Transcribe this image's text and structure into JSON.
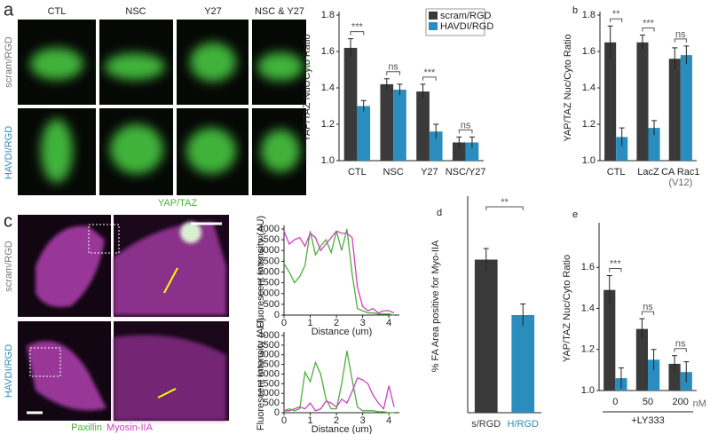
{
  "images": {
    "a": {
      "panel": "a",
      "columns": [
        "CTL",
        "NSC",
        "Y27",
        "NSC & Y27"
      ],
      "rows": [
        "scram/RGD",
        "HAVDI/RGD"
      ],
      "caption": "YAP/TAZ"
    },
    "c": {
      "panel": "c",
      "rows": [
        "scram/RGD",
        "HAVDI/RGD"
      ],
      "captions": [
        "Paxillin",
        "Myosin-IIA"
      ]
    }
  },
  "chart_data": [
    {
      "type": "bar",
      "ylabel": "YAP/TAZ Nuc/Cyto Ratio",
      "categories": [
        "CTL",
        "NSC",
        "Y27",
        "NSC/Y27"
      ],
      "series": [
        {
          "name": "scram/RGD",
          "color": "#3a3a3a",
          "values": [
            1.62,
            1.42,
            1.38,
            1.1
          ],
          "errors": [
            0.05,
            0.03,
            0.04,
            0.03
          ]
        },
        {
          "name": "HAVDI/RGD",
          "color": "#2b8cbe",
          "values": [
            1.3,
            1.39,
            1.16,
            1.1
          ],
          "errors": [
            0.03,
            0.03,
            0.04,
            0.03
          ]
        }
      ],
      "significance": [
        "***",
        "ns",
        "***",
        "ns"
      ],
      "legend": "upper right",
      "ylim": [
        1.0,
        1.8
      ],
      "yticks": [
        {
          "value": 1,
          "label": "1.0"
        },
        {
          "value": 1.2,
          "label": "1.2"
        },
        {
          "value": 1.4,
          "label": "1.4"
        },
        {
          "value": 1.6,
          "label": "1.6"
        },
        {
          "value": 1.8,
          "label": "1.8"
        }
      ]
    },
    {
      "type": "bar",
      "panel": "b",
      "ylabel": "YAP/TAZ Nuc/Cyto Ratio",
      "categories": [
        "CTL",
        "LacZ",
        "CA Rac1"
      ],
      "annotation": "(V12)",
      "series": [
        {
          "name": "scram/RGD",
          "color": "#3a3a3a",
          "values": [
            1.65,
            1.65,
            1.56
          ],
          "errors": [
            0.09,
            0.04,
            0.06
          ]
        },
        {
          "name": "HAVDI/RGD",
          "color": "#2b8cbe",
          "values": [
            1.13,
            1.18,
            1.58
          ],
          "errors": [
            0.05,
            0.04,
            0.05
          ]
        }
      ],
      "significance": [
        "**",
        "***",
        "ns"
      ],
      "ylim": [
        1.0,
        1.8
      ],
      "yticks": [
        {
          "value": 1,
          "label": "1.0"
        },
        {
          "value": 1.2,
          "label": "1.2"
        },
        {
          "value": 1.4,
          "label": "1.4"
        },
        {
          "value": 1.6,
          "label": "1.6"
        },
        {
          "value": 1.8,
          "label": "1.8"
        }
      ]
    },
    {
      "type": "line",
      "ylabel": "Fluorescent Intensity (AU)",
      "xlabel": "Distance (um)",
      "x": [
        0,
        0.2,
        0.4,
        0.6,
        0.8,
        1.0,
        1.2,
        1.4,
        1.6,
        1.8,
        2.0,
        2.2,
        2.4,
        2.6,
        2.8,
        3.0,
        3.2,
        3.4,
        3.6,
        3.8,
        4.0,
        4.2
      ],
      "series": [
        {
          "name": "Paxillin",
          "color": "#4caf3a",
          "values": [
            2400,
            2000,
            1500,
            1800,
            2300,
            3900,
            2800,
            3200,
            3500,
            2900,
            3900,
            3000,
            4000,
            1900,
            300,
            200,
            100,
            100,
            50,
            50,
            50,
            0
          ]
        },
        {
          "name": "Myosin-IIA",
          "color": "#d040c0",
          "values": [
            3900,
            3300,
            3500,
            3600,
            3200,
            3800,
            3600,
            3000,
            3300,
            3600,
            3900,
            3800,
            3800,
            3600,
            1300,
            400,
            200,
            300,
            100,
            200,
            200,
            100
          ]
        }
      ],
      "xlim": [
        0,
        4.4
      ],
      "xticks": [
        0,
        1,
        2,
        3,
        4
      ],
      "ylim": [
        0,
        4000
      ],
      "yticks": [
        0,
        500,
        1000,
        1500,
        2000,
        2500,
        3000,
        3500,
        4000
      ]
    },
    {
      "type": "line",
      "ylabel": "Fluorescent Intensity (AU)",
      "xlabel": "Distance (um)",
      "x": [
        0,
        0.2,
        0.4,
        0.6,
        0.8,
        1.0,
        1.2,
        1.4,
        1.6,
        1.8,
        2.0,
        2.2,
        2.4,
        2.6,
        2.8,
        3.0,
        3.2,
        3.4,
        3.6,
        3.8,
        4.0,
        4.2
      ],
      "series": [
        {
          "name": "Paxillin",
          "color": "#4caf3a",
          "values": [
            100,
            200,
            100,
            200,
            2100,
            1600,
            2600,
            2000,
            700,
            200,
            200,
            1500,
            3200,
            1700,
            300,
            100,
            100,
            100,
            50,
            50,
            0,
            0
          ]
        },
        {
          "name": "Myosin-IIA",
          "color": "#d040c0",
          "values": [
            100,
            100,
            200,
            300,
            200,
            500,
            100,
            200,
            600,
            500,
            300,
            700,
            500,
            1100,
            1800,
            1700,
            1500,
            900,
            500,
            200,
            1400,
            300
          ]
        }
      ],
      "xlim": [
        0,
        4.4
      ],
      "xticks": [
        0,
        1,
        2,
        3,
        4
      ],
      "ylim": [
        0,
        4000
      ],
      "yticks": [
        0,
        500,
        1000,
        1500,
        2000,
        2500,
        3000,
        3500,
        4000
      ]
    },
    {
      "type": "bar",
      "panel": "d",
      "ylabel": "% FA Area positive for Myo-IIA",
      "categories": [
        "s/RGD",
        "H/RGD"
      ],
      "values": [
        34.5,
        22
      ],
      "errors": [
        2.5,
        2.5
      ],
      "colors": [
        "#3a3a3a",
        "#2b8cbe"
      ],
      "significance": [
        "**"
      ],
      "ylim": [
        0,
        48
      ]
    },
    {
      "type": "bar",
      "panel": "e",
      "ylabel": "YAP/TAZ Nuc/Cyto Ratio",
      "categories": [
        "0",
        "50",
        "200"
      ],
      "x_unit": "nM",
      "xlabel": "+LY333",
      "series": [
        {
          "name": "scram/RGD",
          "color": "#3a3a3a",
          "values": [
            1.49,
            1.3,
            1.13
          ],
          "errors": [
            0.07,
            0.05,
            0.04
          ]
        },
        {
          "name": "HAVDI/RGD",
          "color": "#2b8cbe",
          "values": [
            1.06,
            1.15,
            1.09
          ],
          "errors": [
            0.05,
            0.05,
            0.05
          ]
        }
      ],
      "significance": [
        "***",
        "ns",
        "ns"
      ],
      "ylim": [
        1.0,
        1.8
      ],
      "yticks": [
        {
          "value": 1,
          "label": "1.0"
        },
        {
          "value": 1.2,
          "label": "1.2"
        },
        {
          "value": 1.4,
          "label": "1.4"
        },
        {
          "value": 1.6,
          "label": "1.6"
        }
      ]
    }
  ]
}
